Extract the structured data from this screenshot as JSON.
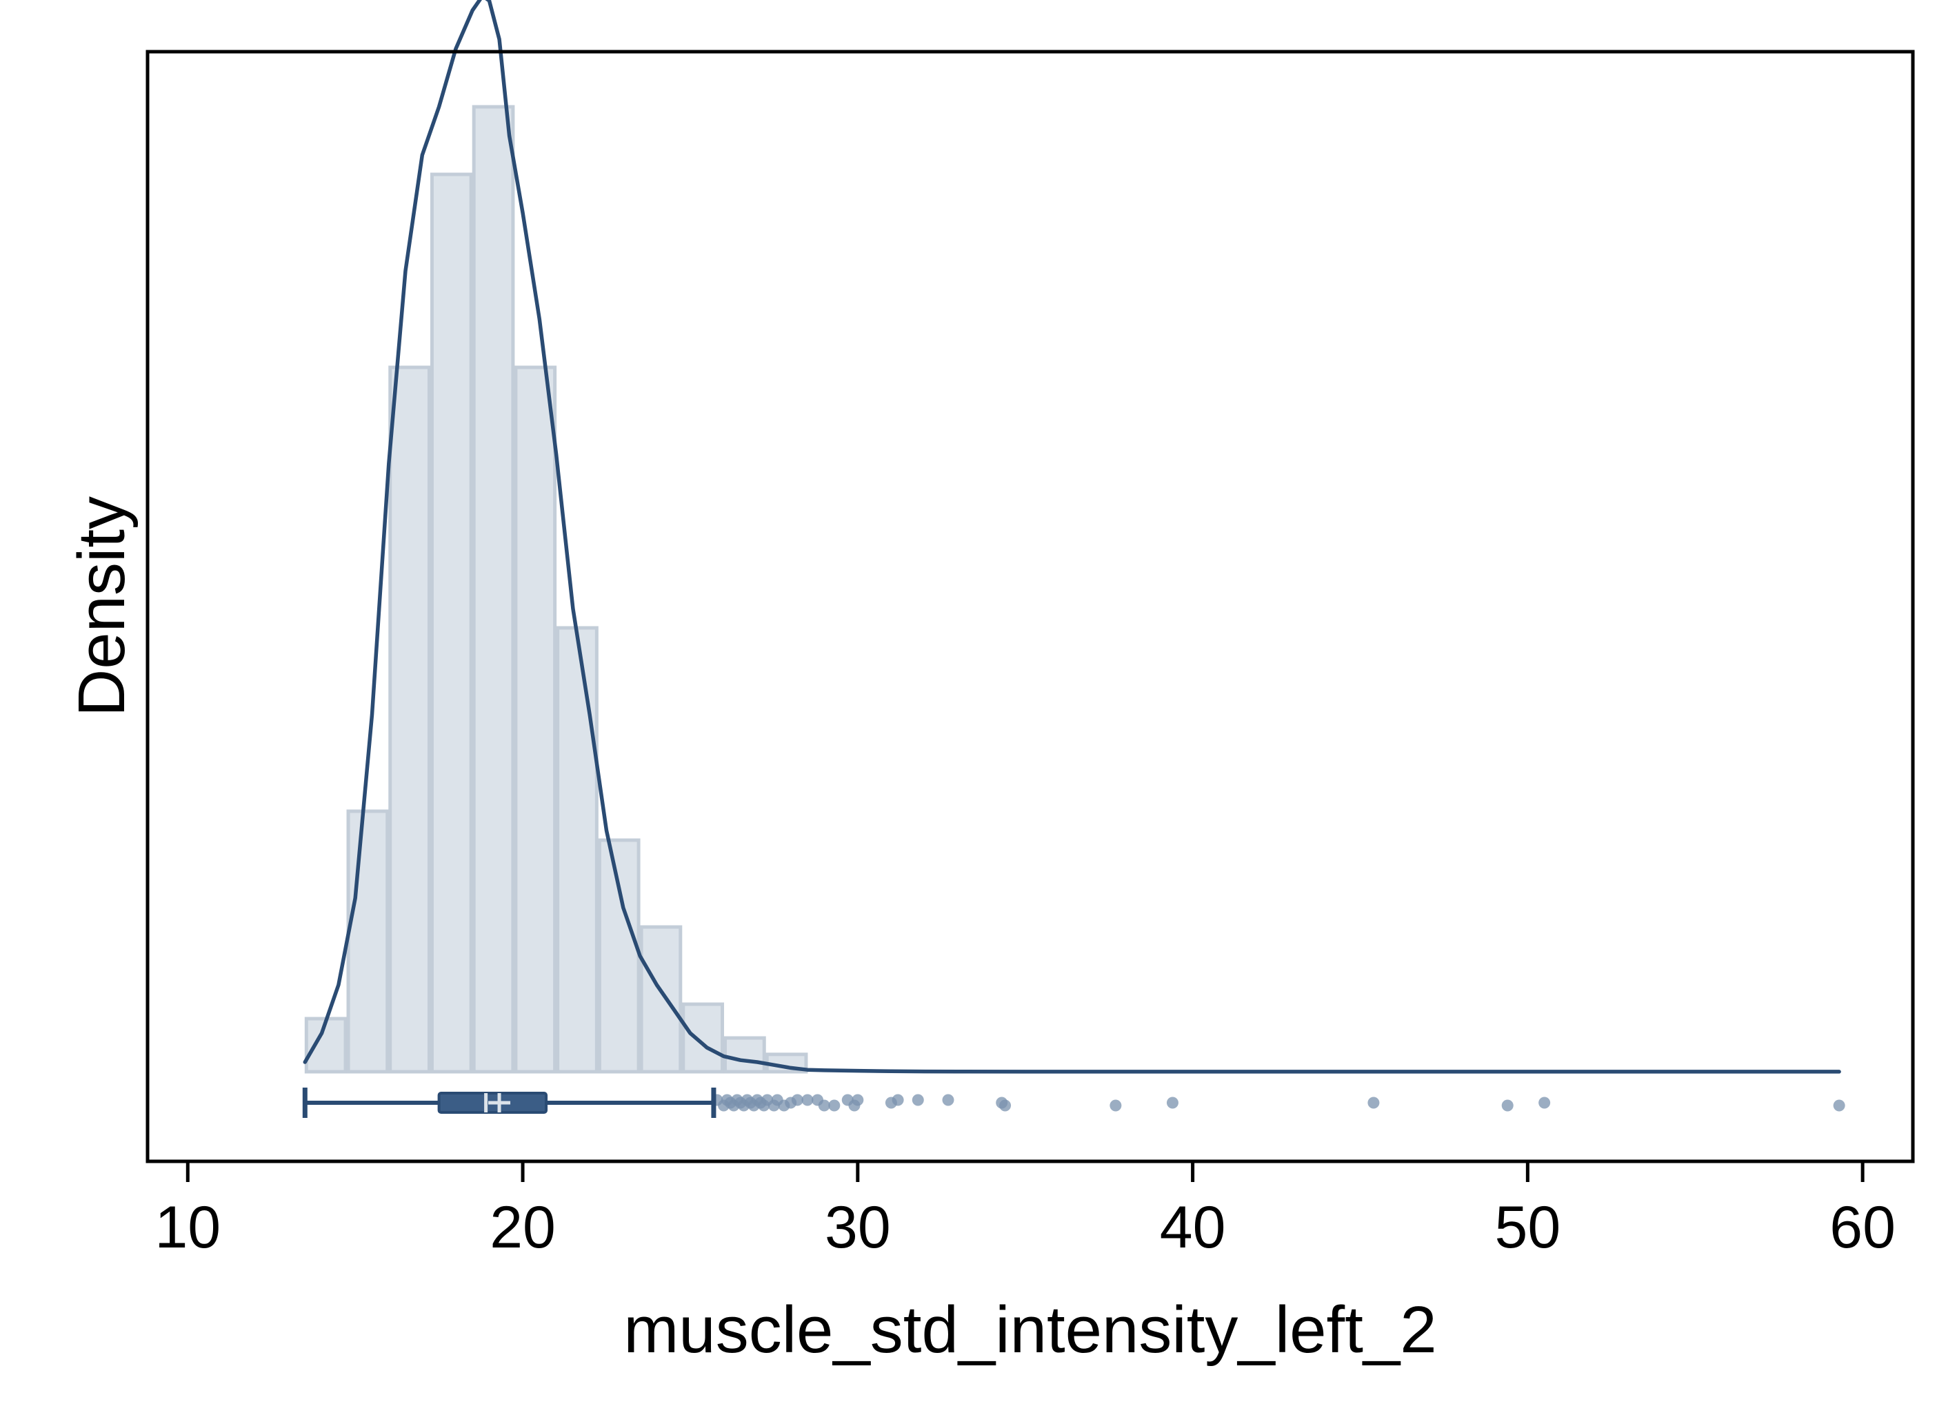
{
  "chart_data": {
    "type": "histogram",
    "xlabel": "muscle_std_intensity_left_2",
    "ylabel": "Density",
    "xlim": [
      8.8,
      61.5
    ],
    "xticks": [
      10,
      20,
      30,
      40,
      50,
      60
    ],
    "x_tick_labels": [
      "10",
      "20",
      "30",
      "40",
      "50",
      "60"
    ],
    "y_tick_labels": [],
    "grid": false,
    "legend": "none",
    "histogram": {
      "bin_edges": [
        13.5,
        14.75,
        16.0,
        17.25,
        18.5,
        19.75,
        21.0,
        22.25,
        23.5,
        24.75,
        26.0,
        27.25,
        28.5
      ],
      "heights": [
        0.055,
        0.27,
        0.73,
        0.93,
        1.0,
        0.73,
        0.46,
        0.24,
        0.15,
        0.07,
        0.035,
        0.018
      ]
    },
    "density_curve": {
      "x": [
        13.5,
        14.0,
        14.5,
        15.0,
        15.5,
        16.0,
        16.5,
        17.0,
        17.5,
        18.0,
        18.5,
        18.8,
        19.0,
        19.3,
        19.6,
        20.0,
        20.5,
        21.0,
        21.5,
        22.0,
        22.5,
        23.0,
        23.5,
        24.0,
        24.5,
        25.0,
        25.5,
        26.0,
        26.5,
        27.0,
        27.5,
        28.0,
        28.5,
        29.0,
        30.0,
        31.0,
        32.0,
        33.0,
        35.0,
        38.0,
        42.0,
        46.0,
        50.0,
        55.0,
        59.3
      ],
      "y": [
        0.01,
        0.04,
        0.09,
        0.18,
        0.37,
        0.63,
        0.83,
        0.95,
        1.0,
        1.06,
        1.1,
        1.115,
        1.11,
        1.07,
        0.97,
        0.89,
        0.78,
        0.64,
        0.48,
        0.37,
        0.25,
        0.17,
        0.12,
        0.09,
        0.065,
        0.04,
        0.025,
        0.016,
        0.012,
        0.01,
        0.007,
        0.004,
        0.002,
        0.0015,
        0.001,
        0.0005,
        0.0003,
        0.0002,
        0.0001,
        0.0001,
        0.0001,
        0.0001,
        0.0001,
        0.0001,
        0.0001
      ]
    },
    "box_plot": {
      "whisker_low": 13.5,
      "q1": 17.5,
      "median": 18.9,
      "mean": 19.3,
      "q3": 20.7,
      "whisker_high": 25.7,
      "outliers": [
        25.8,
        26.0,
        26.1,
        26.2,
        26.3,
        26.4,
        26.5,
        26.6,
        26.7,
        26.8,
        26.9,
        27.0,
        27.1,
        27.2,
        27.3,
        27.5,
        27.6,
        27.8,
        28.0,
        28.2,
        28.5,
        28.8,
        29.0,
        29.3,
        29.7,
        29.9,
        30.0,
        31.0,
        31.2,
        31.8,
        32.7,
        34.3,
        34.4,
        37.7,
        39.4,
        45.4,
        49.4,
        50.5,
        59.3
      ]
    },
    "colors": {
      "bar_fill": "#dce3ea",
      "bar_edge": "#c3cdd8",
      "curve": "#2a4b73",
      "box_fill": "#3b5d86",
      "box_line": "#2a4b73",
      "outlier": "#7a92ad",
      "median_mark": "#dce3ea",
      "frame": "#000000"
    }
  }
}
